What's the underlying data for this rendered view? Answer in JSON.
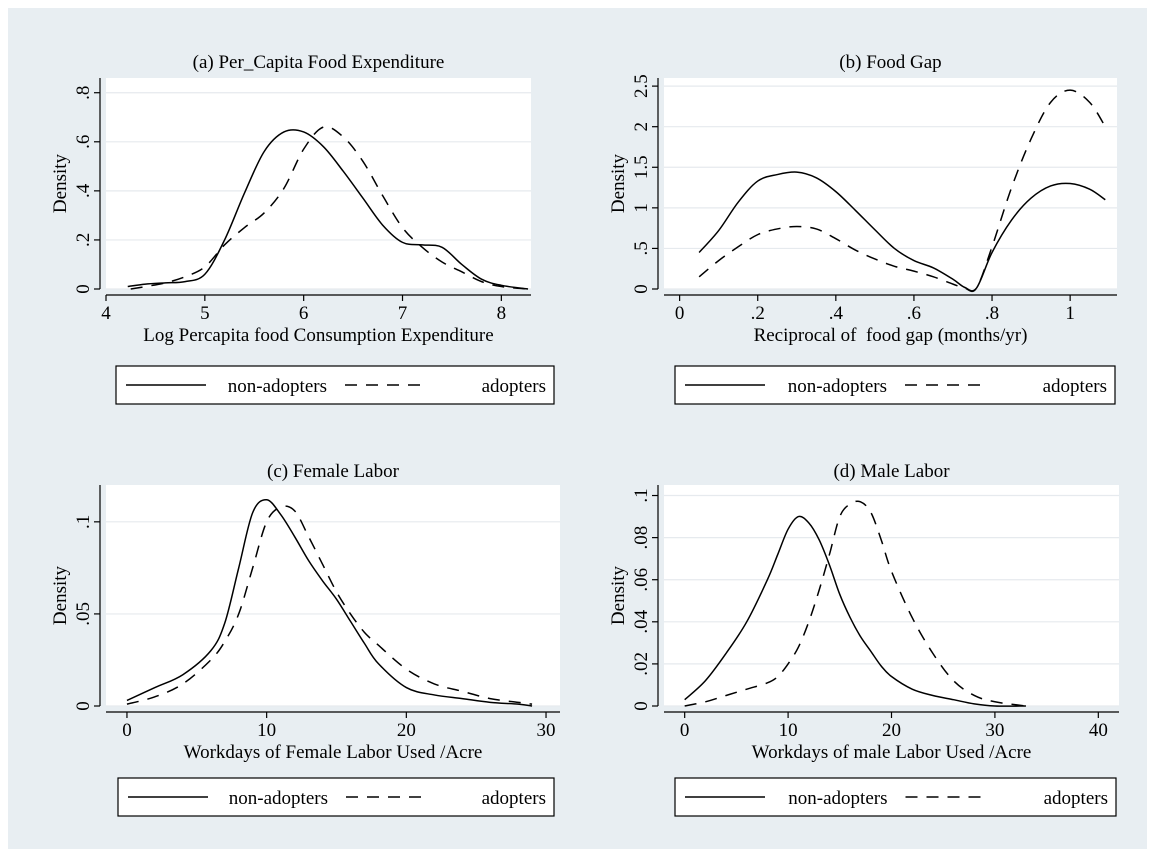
{
  "figure": {
    "background": "#e8eef2",
    "plot_background": "#ffffff",
    "grid_color": "#e6eaee",
    "line_color": "#000000"
  },
  "legend": {
    "series": [
      {
        "name": "non-adopters",
        "style": "solid"
      },
      {
        "name": "adopters",
        "style": "dashed"
      }
    ]
  },
  "chart_data": [
    {
      "type": "line",
      "title": "(a) Per_Capita Food Expenditure",
      "xlabel": "Log Percapita food Consumption Expenditure",
      "ylabel": "Density",
      "xlim": [
        4.0,
        8.3
      ],
      "ylim": [
        0,
        0.86
      ],
      "xticks": [
        4,
        5,
        6,
        7,
        8
      ],
      "xtick_labels": [
        "4",
        "5",
        "6",
        "7",
        "8"
      ],
      "yticks": [
        0,
        0.2,
        0.4,
        0.6,
        0.8
      ],
      "ytick_labels": [
        "0",
        ".2",
        ".4",
        ".6",
        ".8"
      ],
      "grid": true,
      "series": [
        {
          "name": "non-adopters",
          "style": "solid",
          "x": [
            4.22,
            4.4,
            4.6,
            4.8,
            5.0,
            5.2,
            5.4,
            5.6,
            5.8,
            6.0,
            6.2,
            6.4,
            6.6,
            6.8,
            7.0,
            7.2,
            7.4,
            7.6,
            7.8,
            8.0,
            8.27
          ],
          "y": [
            0.01,
            0.02,
            0.025,
            0.03,
            0.06,
            0.2,
            0.39,
            0.56,
            0.64,
            0.64,
            0.58,
            0.48,
            0.37,
            0.26,
            0.19,
            0.18,
            0.17,
            0.1,
            0.04,
            0.015,
            0.0
          ]
        },
        {
          "name": "adopters",
          "style": "dashed",
          "x": [
            4.25,
            4.4,
            4.6,
            4.8,
            5.0,
            5.2,
            5.4,
            5.6,
            5.8,
            6.0,
            6.2,
            6.4,
            6.6,
            6.8,
            7.0,
            7.2,
            7.4,
            7.6,
            7.8,
            8.0,
            8.27
          ],
          "y": [
            0.0,
            0.01,
            0.025,
            0.05,
            0.09,
            0.18,
            0.25,
            0.31,
            0.41,
            0.57,
            0.66,
            0.62,
            0.52,
            0.38,
            0.25,
            0.17,
            0.11,
            0.07,
            0.03,
            0.01,
            0.0
          ]
        }
      ]
    },
    {
      "type": "line",
      "title": "(b) Food Gap",
      "xlabel": "Reciprocal of  food gap (months/yr)",
      "ylabel": "Density",
      "xlim": [
        -0.04,
        1.12
      ],
      "ylim": [
        0,
        2.6
      ],
      "xticks": [
        0,
        0.2,
        0.4,
        0.6,
        0.8,
        1
      ],
      "xtick_labels": [
        "0",
        ".2",
        ".4",
        ".6",
        ".8",
        "1"
      ],
      "yticks": [
        0,
        0.5,
        1,
        1.5,
        2,
        2.5
      ],
      "ytick_labels": [
        "0",
        ".5",
        "1",
        "1.5",
        "2",
        "2.5"
      ],
      "grid": true,
      "series": [
        {
          "name": "non-adopters",
          "style": "solid",
          "x": [
            0.05,
            0.1,
            0.15,
            0.2,
            0.25,
            0.3,
            0.35,
            0.4,
            0.45,
            0.5,
            0.55,
            0.6,
            0.65,
            0.7,
            0.73,
            0.76,
            0.8,
            0.85,
            0.9,
            0.95,
            1.0,
            1.05,
            1.09
          ],
          "y": [
            0.45,
            0.72,
            1.07,
            1.33,
            1.41,
            1.44,
            1.37,
            1.2,
            0.97,
            0.73,
            0.5,
            0.35,
            0.26,
            0.12,
            0.02,
            0.01,
            0.45,
            0.85,
            1.12,
            1.27,
            1.3,
            1.23,
            1.1
          ]
        },
        {
          "name": "adopters",
          "style": "dashed",
          "x": [
            0.05,
            0.1,
            0.15,
            0.2,
            0.25,
            0.3,
            0.35,
            0.4,
            0.45,
            0.5,
            0.55,
            0.6,
            0.65,
            0.7,
            0.73,
            0.76,
            0.8,
            0.85,
            0.9,
            0.95,
            1.0,
            1.05,
            1.09
          ],
          "y": [
            0.15,
            0.35,
            0.52,
            0.67,
            0.74,
            0.77,
            0.74,
            0.62,
            0.48,
            0.37,
            0.28,
            0.22,
            0.15,
            0.06,
            0.01,
            0.01,
            0.52,
            1.25,
            1.85,
            2.3,
            2.45,
            2.3,
            2.0
          ]
        }
      ]
    },
    {
      "type": "line",
      "title": "(c) Female Labor",
      "xlabel": "Workdays of Female Labor Used /Acre",
      "ylabel": "Density",
      "xlim": [
        -1.5,
        31
      ],
      "ylim": [
        0,
        0.12
      ],
      "xticks": [
        0,
        10,
        20,
        30
      ],
      "xtick_labels": [
        "0",
        "10",
        "20",
        "30"
      ],
      "yticks": [
        0,
        0.05,
        0.1
      ],
      "ytick_labels": [
        "0",
        ".05",
        ".1"
      ],
      "grid": true,
      "series": [
        {
          "name": "non-adopters",
          "style": "solid",
          "x": [
            0,
            2,
            4,
            6,
            7,
            8,
            9,
            10,
            11,
            12,
            13,
            14,
            15,
            16,
            17,
            18,
            20,
            22,
            24,
            26,
            28,
            29
          ],
          "y": [
            0.003,
            0.01,
            0.017,
            0.03,
            0.045,
            0.075,
            0.105,
            0.112,
            0.104,
            0.092,
            0.079,
            0.068,
            0.058,
            0.046,
            0.034,
            0.023,
            0.01,
            0.006,
            0.004,
            0.002,
            0.001,
            0.0
          ]
        },
        {
          "name": "adopters",
          "style": "dashed",
          "x": [
            0,
            2,
            4,
            6,
            7,
            8,
            9,
            10,
            11,
            12,
            13,
            14,
            15,
            16,
            17,
            18,
            20,
            22,
            24,
            26,
            28,
            29
          ],
          "y": [
            0.001,
            0.005,
            0.012,
            0.025,
            0.035,
            0.05,
            0.075,
            0.1,
            0.108,
            0.106,
            0.092,
            0.077,
            0.062,
            0.05,
            0.04,
            0.033,
            0.02,
            0.012,
            0.008,
            0.004,
            0.002,
            0.001
          ]
        }
      ]
    },
    {
      "type": "line",
      "title": "(d) Male Labor",
      "xlabel": "Workdays of male Labor Used /Acre",
      "ylabel": "Density",
      "xlim": [
        -2,
        42
      ],
      "ylim": [
        0,
        0.105
      ],
      "xticks": [
        0,
        10,
        20,
        30,
        40
      ],
      "xtick_labels": [
        "0",
        "10",
        "20",
        "30",
        "40"
      ],
      "yticks": [
        0,
        0.02,
        0.04,
        0.06,
        0.08,
        0.1
      ],
      "ytick_labels": [
        "0",
        ".02",
        ".04",
        ".06",
        ".08",
        ".1"
      ],
      "grid": true,
      "series": [
        {
          "name": "non-adopters",
          "style": "solid",
          "x": [
            0,
            2,
            4,
            6,
            8,
            9,
            10,
            11,
            12,
            13,
            14,
            15,
            16,
            17,
            18,
            19,
            20,
            22,
            24,
            26,
            28,
            30,
            33
          ],
          "y": [
            0.003,
            0.012,
            0.025,
            0.04,
            0.06,
            0.072,
            0.084,
            0.09,
            0.087,
            0.079,
            0.067,
            0.053,
            0.042,
            0.033,
            0.026,
            0.019,
            0.014,
            0.008,
            0.005,
            0.003,
            0.001,
            0.0,
            0.0
          ]
        },
        {
          "name": "adopters",
          "style": "dashed",
          "x": [
            0,
            2,
            4,
            6,
            8,
            9,
            10,
            11,
            12,
            13,
            14,
            15,
            16,
            17,
            18,
            19,
            20,
            22,
            24,
            26,
            28,
            30,
            33
          ],
          "y": [
            0.0,
            0.002,
            0.005,
            0.008,
            0.011,
            0.014,
            0.02,
            0.028,
            0.04,
            0.055,
            0.072,
            0.09,
            0.096,
            0.097,
            0.092,
            0.079,
            0.064,
            0.042,
            0.025,
            0.012,
            0.005,
            0.002,
            0.0
          ]
        }
      ]
    }
  ]
}
